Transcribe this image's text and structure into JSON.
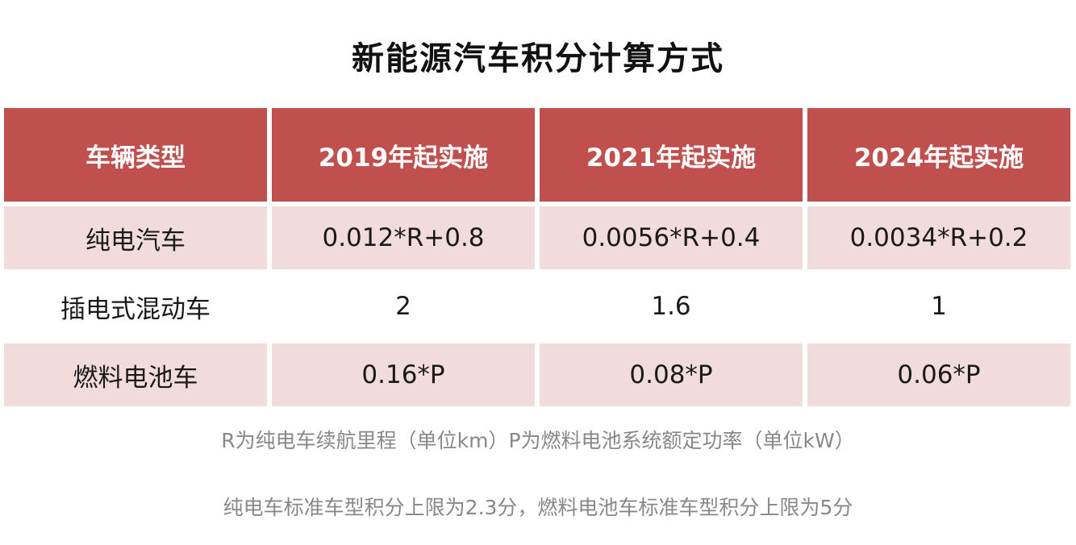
{
  "title": "新能源汽车积分计算方式",
  "table": {
    "headers": [
      "车辆类型",
      "2019年起实施",
      "2021年起实施",
      "2024年起实施"
    ],
    "rows": [
      [
        "纯电汽车",
        "0.012*R+0.8",
        "0.0056*R+0.4",
        "0.0034*R+0.2"
      ],
      [
        "插电式混动车",
        "2",
        "1.6",
        "1"
      ],
      [
        "燃料电池车",
        "0.16*P",
        "0.08*P",
        "0.06*P"
      ]
    ]
  },
  "notes": [
    "R为纯电车续航里程（单位km）P为燃料电池系统额定功率（单位kW）",
    "纯电车标准车型积分上限为2.3分，燃料电池车标准车型积分上限为5分"
  ],
  "colors": {
    "header_bg": "#c0504d",
    "shaded_row_bg": "#f2dcdb"
  }
}
